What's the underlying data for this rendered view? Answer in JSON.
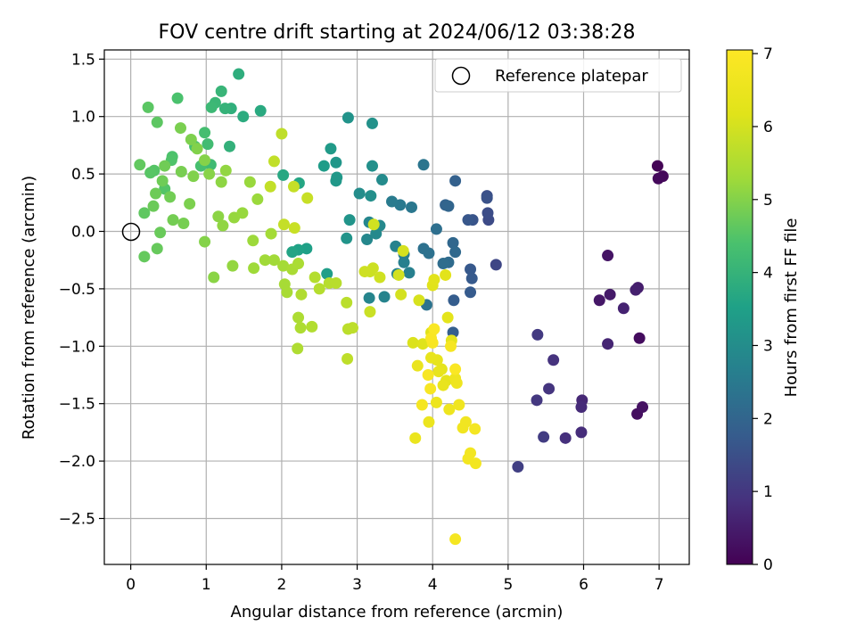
{
  "chart_data": {
    "type": "scatter",
    "title": "FOV centre drift starting at 2024/06/12 03:38:28",
    "xlabel": "Angular distance from reference (arcmin)",
    "ylabel": "Rotation from reference (arcmin)",
    "xlim": [
      -0.35,
      7.4
    ],
    "ylim": [
      -2.9,
      1.58
    ],
    "xticks": [
      0,
      1,
      2,
      3,
      4,
      5,
      6,
      7
    ],
    "xtick_labels": [
      "0",
      "1",
      "2",
      "3",
      "4",
      "5",
      "6",
      "7"
    ],
    "yticks": [
      1.5,
      1.0,
      0.5,
      0.0,
      -0.5,
      -1.0,
      -1.5,
      -2.0,
      -2.5
    ],
    "ytick_labels": [
      "1.5",
      "1.0",
      "0.5",
      "0.0",
      "−0.5",
      "−1.0",
      "−1.5",
      "−2.0",
      "−2.5"
    ],
    "grid": true,
    "legend": {
      "placement": "upper-right",
      "entries": [
        "Reference platepar"
      ]
    },
    "reference_point": {
      "x": 0,
      "y": 0,
      "label": "Reference platepar"
    },
    "colorbar": {
      "label": "Hours from first FF file",
      "range": [
        0,
        7.05
      ],
      "ticks": [
        0,
        1,
        2,
        3,
        4,
        5,
        6,
        7
      ],
      "tick_labels": [
        "0",
        "1",
        "2",
        "3",
        "4",
        "5",
        "6",
        "7"
      ],
      "colormap": "viridis"
    },
    "points": [
      [
        6.98,
        0.57,
        0.05
      ],
      [
        7.05,
        0.48,
        0.1
      ],
      [
        6.99,
        0.46,
        0.15
      ],
      [
        6.74,
        -0.93,
        0.2
      ],
      [
        6.71,
        -1.59,
        0.25
      ],
      [
        6.78,
        -1.53,
        0.3
      ],
      [
        6.32,
        -0.21,
        0.35
      ],
      [
        6.21,
        -0.6,
        0.4
      ],
      [
        6.35,
        -0.55,
        0.45
      ],
      [
        6.72,
        -0.49,
        0.5
      ],
      [
        6.69,
        -0.51,
        0.55
      ],
      [
        6.53,
        -0.67,
        0.6
      ],
      [
        6.32,
        -0.98,
        0.65
      ],
      [
        5.98,
        -1.47,
        0.7
      ],
      [
        5.97,
        -1.53,
        0.75
      ],
      [
        5.97,
        -1.75,
        0.8
      ],
      [
        5.76,
        -1.8,
        0.85
      ],
      [
        5.6,
        -1.12,
        0.9
      ],
      [
        5.54,
        -1.37,
        0.95
      ],
      [
        5.38,
        -1.47,
        1.0
      ],
      [
        5.39,
        -0.9,
        1.05
      ],
      [
        5.47,
        -1.79,
        1.1
      ],
      [
        5.13,
        -2.05,
        1.15
      ],
      [
        4.84,
        -0.29,
        1.3
      ],
      [
        4.74,
        0.1,
        1.4
      ],
      [
        4.73,
        0.16,
        1.45
      ],
      [
        4.72,
        0.31,
        1.5
      ],
      [
        4.72,
        0.29,
        1.55
      ],
      [
        4.53,
        0.1,
        1.6
      ],
      [
        4.47,
        0.1,
        1.65
      ],
      [
        4.5,
        -0.33,
        1.7
      ],
      [
        4.52,
        -0.41,
        1.72
      ],
      [
        4.5,
        -0.53,
        1.75
      ],
      [
        4.28,
        -0.6,
        1.8
      ],
      [
        4.27,
        -0.88,
        1.85
      ],
      [
        4.3,
        0.44,
        1.9
      ],
      [
        4.17,
        0.23,
        1.95
      ],
      [
        4.21,
        0.22,
        2.0
      ],
      [
        4.27,
        -0.1,
        2.05
      ],
      [
        4.3,
        -0.18,
        2.1
      ],
      [
        4.21,
        -0.27,
        2.15
      ],
      [
        4.14,
        -0.28,
        2.2
      ],
      [
        4.05,
        0.02,
        2.25
      ],
      [
        3.95,
        -0.19,
        2.28
      ],
      [
        3.88,
        -0.15,
        2.3
      ],
      [
        3.92,
        -0.64,
        2.35
      ],
      [
        3.88,
        0.58,
        2.4
      ],
      [
        3.72,
        0.21,
        2.45
      ],
      [
        3.57,
        0.23,
        2.5
      ],
      [
        3.46,
        0.26,
        2.55
      ],
      [
        3.62,
        -0.2,
        2.6
      ],
      [
        3.62,
        -0.27,
        2.65
      ],
      [
        3.69,
        -0.36,
        2.68
      ],
      [
        3.53,
        -0.37,
        2.7
      ],
      [
        3.51,
        -0.13,
        2.73
      ],
      [
        3.36,
        -0.57,
        2.75
      ],
      [
        3.16,
        -0.58,
        2.8
      ],
      [
        3.16,
        0.08,
        2.83
      ],
      [
        3.13,
        -0.07,
        2.85
      ],
      [
        3.3,
        0.05,
        2.88
      ],
      [
        3.25,
        -0.02,
        2.9
      ],
      [
        3.33,
        0.45,
        2.95
      ],
      [
        3.03,
        0.33,
        3.0
      ],
      [
        3.18,
        0.31,
        3.05
      ],
      [
        3.2,
        0.57,
        3.08
      ],
      [
        3.2,
        0.94,
        3.1
      ],
      [
        2.88,
        0.99,
        3.15
      ],
      [
        2.9,
        0.1,
        3.18
      ],
      [
        2.86,
        -0.06,
        3.2
      ],
      [
        2.72,
        0.6,
        3.25
      ],
      [
        2.73,
        0.47,
        3.28
      ],
      [
        2.72,
        0.44,
        3.3
      ],
      [
        2.65,
        0.72,
        3.35
      ],
      [
        2.56,
        0.57,
        3.4
      ],
      [
        2.6,
        -0.37,
        3.45
      ],
      [
        2.33,
        -0.15,
        3.5
      ],
      [
        2.22,
        -0.16,
        3.55
      ],
      [
        2.14,
        -0.18,
        3.6
      ],
      [
        2.23,
        0.42,
        3.65
      ],
      [
        2.02,
        0.49,
        3.7
      ],
      [
        1.72,
        1.05,
        3.75
      ],
      [
        1.49,
        1.0,
        3.8
      ],
      [
        1.43,
        1.37,
        3.85
      ],
      [
        1.33,
        1.07,
        3.9
      ],
      [
        1.31,
        0.74,
        3.95
      ],
      [
        1.25,
        1.07,
        4.0
      ],
      [
        1.2,
        1.22,
        4.05
      ],
      [
        1.12,
        1.12,
        4.1
      ],
      [
        1.07,
        1.08,
        4.15
      ],
      [
        1.06,
        0.58,
        4.2
      ],
      [
        1.02,
        0.76,
        4.25
      ],
      [
        0.98,
        0.86,
        4.3
      ],
      [
        0.93,
        0.57,
        4.35
      ],
      [
        0.85,
        0.74,
        4.38
      ],
      [
        0.62,
        1.16,
        4.4
      ],
      [
        0.55,
        0.65,
        4.43
      ],
      [
        0.54,
        0.62,
        4.46
      ],
      [
        0.45,
        0.37,
        4.5
      ],
      [
        0.31,
        0.53,
        4.52
      ],
      [
        0.26,
        0.51,
        4.55
      ],
      [
        0.23,
        1.08,
        4.58
      ],
      [
        0.35,
        0.95,
        4.6
      ],
      [
        0.18,
        0.16,
        4.62
      ],
      [
        0.12,
        0.58,
        4.65
      ],
      [
        0.18,
        -0.22,
        4.68
      ],
      [
        0.35,
        -0.15,
        4.7
      ],
      [
        0.39,
        -0.01,
        4.72
      ],
      [
        0.3,
        0.22,
        4.74
      ],
      [
        0.33,
        0.33,
        4.76
      ],
      [
        0.42,
        0.44,
        4.78
      ],
      [
        0.45,
        0.57,
        4.8
      ],
      [
        0.52,
        0.3,
        4.82
      ],
      [
        0.56,
        0.1,
        4.84
      ],
      [
        0.7,
        0.07,
        4.86
      ],
      [
        0.67,
        0.52,
        4.88
      ],
      [
        0.66,
        0.9,
        4.9
      ],
      [
        0.78,
        0.24,
        4.92
      ],
      [
        0.8,
        0.8,
        4.94
      ],
      [
        0.83,
        0.48,
        4.96
      ],
      [
        0.88,
        0.72,
        4.98
      ],
      [
        0.98,
        -0.09,
        5.0
      ],
      [
        0.98,
        0.62,
        5.02
      ],
      [
        1.04,
        0.5,
        5.04
      ],
      [
        1.1,
        -0.4,
        5.06
      ],
      [
        1.16,
        0.13,
        5.08
      ],
      [
        1.2,
        0.43,
        5.1
      ],
      [
        1.22,
        0.05,
        5.12
      ],
      [
        1.26,
        0.53,
        5.14
      ],
      [
        1.35,
        -0.3,
        5.16
      ],
      [
        1.37,
        0.12,
        5.18
      ],
      [
        1.48,
        0.16,
        5.2
      ],
      [
        1.58,
        0.43,
        5.22
      ],
      [
        1.68,
        0.28,
        5.24
      ],
      [
        1.62,
        -0.08,
        5.26
      ],
      [
        1.63,
        -0.32,
        5.28
      ],
      [
        1.78,
        -0.25,
        5.3
      ],
      [
        1.9,
        -0.25,
        5.32
      ],
      [
        1.86,
        -0.02,
        5.34
      ],
      [
        2.02,
        -0.3,
        5.36
      ],
      [
        2.04,
        -0.46,
        5.38
      ],
      [
        2.07,
        -0.53,
        5.4
      ],
      [
        2.14,
        -0.33,
        5.42
      ],
      [
        2.22,
        -0.28,
        5.44
      ],
      [
        2.22,
        -0.75,
        5.46
      ],
      [
        2.25,
        -0.84,
        5.48
      ],
      [
        2.21,
        -1.02,
        5.5
      ],
      [
        2.26,
        -0.55,
        5.52
      ],
      [
        2.4,
        -0.83,
        5.54
      ],
      [
        2.44,
        -0.4,
        5.56
      ],
      [
        2.5,
        -0.5,
        5.58
      ],
      [
        2.63,
        -0.45,
        5.6
      ],
      [
        2.72,
        -0.45,
        5.62
      ],
      [
        2.86,
        -0.62,
        5.64
      ],
      [
        2.88,
        -0.85,
        5.66
      ],
      [
        2.94,
        -0.84,
        5.68
      ],
      [
        2.87,
        -1.11,
        5.7
      ],
      [
        2.0,
        0.85,
        5.72
      ],
      [
        1.9,
        0.61,
        5.74
      ],
      [
        1.85,
        0.39,
        5.76
      ],
      [
        2.03,
        0.06,
        5.78
      ],
      [
        2.16,
        0.39,
        5.8
      ],
      [
        2.34,
        0.29,
        5.82
      ],
      [
        2.17,
        0.03,
        5.84
      ],
      [
        3.17,
        -0.7,
        5.86
      ],
      [
        3.17,
        -0.35,
        5.88
      ],
      [
        3.21,
        -0.32,
        5.9
      ],
      [
        3.1,
        -0.35,
        5.92
      ],
      [
        3.3,
        -0.4,
        5.94
      ],
      [
        3.22,
        0.06,
        5.96
      ],
      [
        3.55,
        -0.38,
        5.98
      ],
      [
        3.58,
        -0.55,
        6.0
      ],
      [
        3.61,
        -0.17,
        6.02
      ],
      [
        3.82,
        -0.6,
        6.05
      ],
      [
        3.74,
        -0.97,
        6.1
      ],
      [
        3.87,
        -0.98,
        6.15
      ],
      [
        3.98,
        -0.88,
        6.18
      ],
      [
        4.0,
        -0.47,
        6.2
      ],
      [
        4.02,
        -0.42,
        6.22
      ],
      [
        4.17,
        -0.38,
        6.25
      ],
      [
        4.2,
        -0.75,
        6.28
      ],
      [
        4.25,
        -0.95,
        6.3
      ],
      [
        4.12,
        -1.2,
        6.33
      ],
      [
        4.18,
        -1.3,
        6.35
      ],
      [
        4.06,
        -1.12,
        6.38
      ],
      [
        3.98,
        -1.1,
        6.4
      ],
      [
        4.08,
        -1.22,
        6.42
      ],
      [
        4.14,
        -1.34,
        6.45
      ],
      [
        3.8,
        -1.17,
        6.48
      ],
      [
        3.77,
        -1.8,
        6.5
      ],
      [
        3.95,
        -1.66,
        6.52
      ],
      [
        4.05,
        -1.49,
        6.55
      ],
      [
        4.22,
        -1.55,
        6.58
      ],
      [
        4.3,
        -1.28,
        6.6
      ],
      [
        4.32,
        -1.32,
        6.62
      ],
      [
        4.35,
        -1.51,
        6.65
      ],
      [
        4.4,
        -1.71,
        6.68
      ],
      [
        4.44,
        -1.66,
        6.7
      ],
      [
        4.5,
        -1.93,
        6.72
      ],
      [
        4.47,
        -1.98,
        6.74
      ],
      [
        4.57,
        -2.02,
        6.76
      ],
      [
        4.56,
        -1.72,
        6.78
      ],
      [
        4.3,
        -2.68,
        6.8
      ],
      [
        3.86,
        -1.51,
        6.82
      ],
      [
        4.24,
        -1.0,
        6.84
      ],
      [
        3.97,
        -1.37,
        6.86
      ],
      [
        3.94,
        -1.25,
        6.88
      ],
      [
        4.0,
        -0.97,
        6.9
      ],
      [
        3.98,
        -0.93,
        6.92
      ],
      [
        4.02,
        -0.85,
        6.94
      ],
      [
        4.3,
        -1.2,
        6.96
      ]
    ]
  }
}
